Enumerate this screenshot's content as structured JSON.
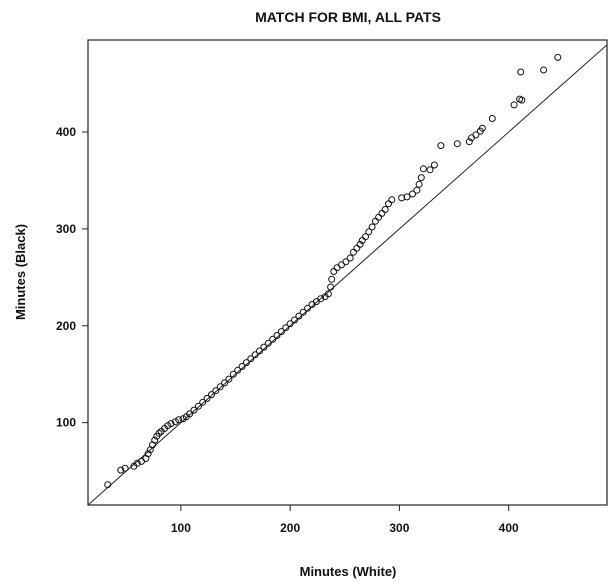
{
  "chart_data": {
    "type": "scatter",
    "title": "MATCH FOR BMI, ALL PATS",
    "xlabel": "Minutes (White)",
    "ylabel": "Minutes (Black)",
    "xlim": [
      15,
      490
    ],
    "ylim": [
      15,
      495
    ],
    "x_ticks": [
      100,
      200,
      300,
      400
    ],
    "y_ticks": [
      100,
      200,
      300,
      400
    ],
    "grid": false,
    "legend": "none",
    "reference_line": {
      "label": "",
      "slope": 1,
      "intercept": 0
    },
    "series": [
      {
        "marker": "open-circle",
        "points": [
          [
            33,
            36
          ],
          [
            45,
            51
          ],
          [
            49,
            53
          ],
          [
            57,
            55
          ],
          [
            60,
            58
          ],
          [
            64,
            60
          ],
          [
            68,
            63
          ],
          [
            70,
            68
          ],
          [
            72,
            72
          ],
          [
            74,
            77
          ],
          [
            76,
            82
          ],
          [
            78,
            86
          ],
          [
            80,
            89
          ],
          [
            82,
            91
          ],
          [
            85,
            94
          ],
          [
            88,
            97
          ],
          [
            91,
            99
          ],
          [
            95,
            101
          ],
          [
            98,
            103
          ],
          [
            102,
            104
          ],
          [
            105,
            106
          ],
          [
            108,
            109
          ],
          [
            112,
            113
          ],
          [
            116,
            117
          ],
          [
            120,
            121
          ],
          [
            124,
            125
          ],
          [
            128,
            129
          ],
          [
            132,
            133
          ],
          [
            136,
            137
          ],
          [
            140,
            141
          ],
          [
            144,
            145
          ],
          [
            148,
            150
          ],
          [
            152,
            154
          ],
          [
            156,
            158
          ],
          [
            160,
            162
          ],
          [
            164,
            166
          ],
          [
            168,
            170
          ],
          [
            172,
            174
          ],
          [
            176,
            178
          ],
          [
            180,
            182
          ],
          [
            184,
            186
          ],
          [
            188,
            190
          ],
          [
            192,
            194
          ],
          [
            196,
            198
          ],
          [
            200,
            202
          ],
          [
            204,
            206
          ],
          [
            208,
            210
          ],
          [
            212,
            214
          ],
          [
            216,
            218
          ],
          [
            220,
            222
          ],
          [
            224,
            225
          ],
          [
            228,
            228
          ],
          [
            232,
            230
          ],
          [
            235,
            233
          ],
          [
            237,
            240
          ],
          [
            238,
            248
          ],
          [
            240,
            256
          ],
          [
            243,
            260
          ],
          [
            247,
            263
          ],
          [
            251,
            266
          ],
          [
            255,
            270
          ],
          [
            258,
            276
          ],
          [
            261,
            280
          ],
          [
            264,
            284
          ],
          [
            266,
            288
          ],
          [
            269,
            292
          ],
          [
            272,
            297
          ],
          [
            275,
            302
          ],
          [
            278,
            308
          ],
          [
            281,
            312
          ],
          [
            284,
            316
          ],
          [
            287,
            320
          ],
          [
            290,
            326
          ],
          [
            293,
            330
          ],
          [
            302,
            332
          ],
          [
            307,
            333
          ],
          [
            312,
            336
          ],
          [
            316,
            340
          ],
          [
            318,
            346
          ],
          [
            320,
            353
          ],
          [
            322,
            362
          ],
          [
            328,
            361
          ],
          [
            332,
            366
          ],
          [
            338,
            386
          ],
          [
            353,
            388
          ],
          [
            364,
            390
          ],
          [
            366,
            394
          ],
          [
            370,
            397
          ],
          [
            374,
            401
          ],
          [
            376,
            404
          ],
          [
            385,
            414
          ],
          [
            405,
            428
          ],
          [
            410,
            434
          ],
          [
            412,
            433
          ],
          [
            411,
            462
          ],
          [
            432,
            464
          ],
          [
            445,
            477
          ]
        ]
      }
    ]
  }
}
